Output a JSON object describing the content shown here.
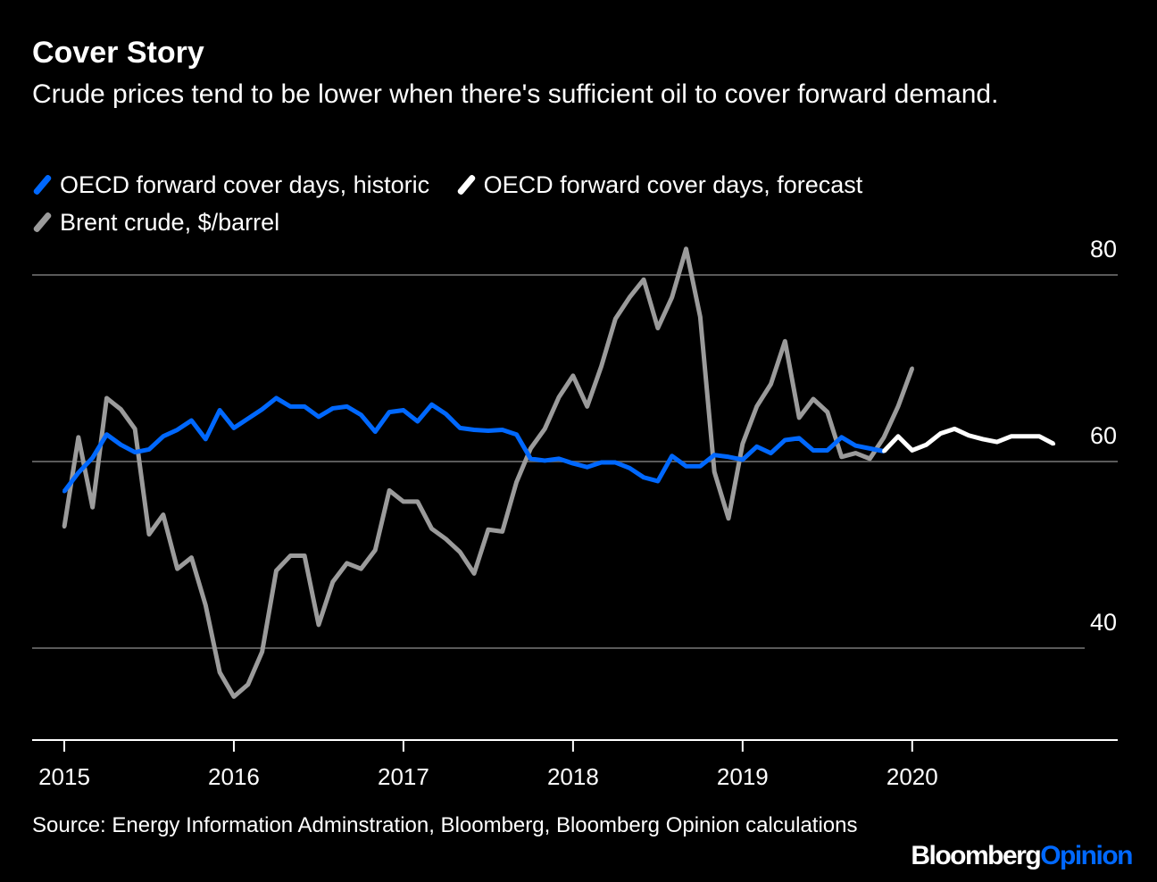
{
  "chart_data": {
    "type": "line",
    "title": "Cover Story",
    "subtitle": "Crude prices tend to be lower when there's sufficient oil to cover forward demand.",
    "xlabel": "",
    "ylabel": "",
    "ylim": [
      30,
      83
    ],
    "yticks": [
      40,
      60,
      80
    ],
    "xticks": [
      "2015",
      "2016",
      "2017",
      "2018",
      "2019",
      "2020"
    ],
    "grid": true,
    "legend_position": "top-left",
    "x_start": "2015-01",
    "x_step": "month",
    "series": [
      {
        "name": "OECD forward cover days, historic",
        "color": "#0068ff",
        "start": "2015-01",
        "values": [
          56.8,
          58.8,
          60.4,
          62.9,
          61.8,
          61.0,
          61.3,
          62.7,
          63.4,
          64.4,
          62.4,
          65.5,
          63.6,
          64.6,
          65.6,
          66.8,
          65.9,
          65.9,
          64.8,
          65.7,
          65.9,
          65.0,
          63.2,
          65.3,
          65.5,
          64.3,
          66.1,
          65.1,
          63.6,
          63.4,
          63.3,
          63.4,
          62.9,
          60.3,
          60.1,
          60.3,
          59.8,
          59.4,
          59.9,
          59.9,
          59.3,
          58.3,
          57.9,
          60.6,
          59.5,
          59.5,
          60.7,
          60.5,
          60.2,
          61.6,
          60.9,
          62.3,
          62.5,
          61.2,
          61.2,
          62.6,
          61.7,
          61.4,
          61.1
        ]
      },
      {
        "name": "OECD forward cover days, forecast",
        "color": "#ffffff",
        "start": "2019-11",
        "values": [
          61.1,
          62.7,
          61.2,
          61.8,
          63.0,
          63.5,
          62.8,
          62.4,
          62.1,
          62.7,
          62.7,
          62.7,
          61.9
        ]
      },
      {
        "name": "Brent crude, $/barrel",
        "color": "#9b9b9b",
        "start": "2015-01",
        "values": [
          53.0,
          62.6,
          55.1,
          66.8,
          65.6,
          63.5,
          52.2,
          54.3,
          48.5,
          49.7,
          44.6,
          37.4,
          34.8,
          36.1,
          39.6,
          48.3,
          49.9,
          49.9,
          42.5,
          47.1,
          49.1,
          48.5,
          50.5,
          56.9,
          55.7,
          55.7,
          52.8,
          51.7,
          50.3,
          48.0,
          52.7,
          52.5,
          57.8,
          61.4,
          63.5,
          66.9,
          69.2,
          65.9,
          70.2,
          75.3,
          77.6,
          79.5,
          74.3,
          77.6,
          82.8,
          75.5,
          58.9,
          53.9,
          61.9,
          65.9,
          68.3,
          72.9,
          64.7,
          66.7,
          65.3,
          60.5,
          60.9,
          60.3,
          62.6,
          65.9,
          70.0
        ]
      }
    ]
  },
  "source": "Source: Energy Information Adminstration, Bloomberg, Bloomberg Opinion calculations",
  "logo": {
    "brand": "Bloomberg",
    "product": "Opinion",
    "product_color": "#0068ff"
  }
}
